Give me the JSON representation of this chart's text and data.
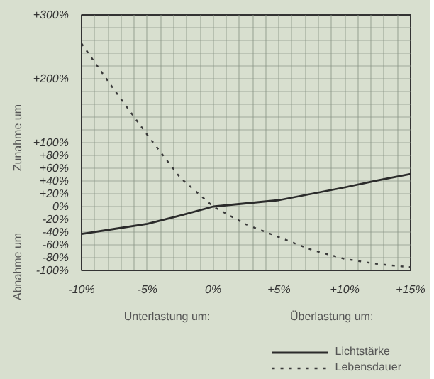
{
  "chart_data": {
    "type": "line",
    "x": [
      -10,
      -7.5,
      -5,
      -2.5,
      0,
      2.5,
      5,
      7.5,
      10,
      12.5,
      15
    ],
    "series": [
      {
        "name": "Lichtstärke",
        "color": "#2b2b2b",
        "line_style": "solid",
        "values": [
          -43,
          -35,
          -27,
          -14,
          0,
          5,
          10,
          20,
          30,
          41,
          51
        ]
      },
      {
        "name": "Lebensdauer",
        "color": "#3a3a3a",
        "line_style": "dotted",
        "values": [
          255,
          182,
          112,
          45,
          0,
          -28,
          -48,
          -68,
          -82,
          -90,
          -95
        ]
      }
    ],
    "xlim": [
      -10,
      15
    ],
    "ylim": [
      -100,
      300
    ],
    "xticks": [
      {
        "value": -10,
        "label": "-10%"
      },
      {
        "value": -9,
        "label": null
      },
      {
        "value": -8,
        "label": null
      },
      {
        "value": -7,
        "label": null
      },
      {
        "value": -6,
        "label": null
      },
      {
        "value": -5,
        "label": "-5%"
      },
      {
        "value": -4,
        "label": null
      },
      {
        "value": -3,
        "label": null
      },
      {
        "value": -2,
        "label": null
      },
      {
        "value": -1,
        "label": null
      },
      {
        "value": 0,
        "label": "0%"
      },
      {
        "value": 1,
        "label": null
      },
      {
        "value": 2,
        "label": null
      },
      {
        "value": 3,
        "label": null
      },
      {
        "value": 4,
        "label": null
      },
      {
        "value": 5,
        "label": "+5%"
      },
      {
        "value": 6,
        "label": null
      },
      {
        "value": 7,
        "label": null
      },
      {
        "value": 8,
        "label": null
      },
      {
        "value": 9,
        "label": null
      },
      {
        "value": 10,
        "label": "+10%"
      },
      {
        "value": 11,
        "label": null
      },
      {
        "value": 12,
        "label": null
      },
      {
        "value": 13,
        "label": null
      },
      {
        "value": 14,
        "label": null
      },
      {
        "value": 15,
        "label": "+15%"
      }
    ],
    "yticks": [
      {
        "value": -100,
        "label": "-100%"
      },
      {
        "value": -80,
        "label": "-80%"
      },
      {
        "value": -60,
        "label": "-60%"
      },
      {
        "value": -40,
        "label": "-40%"
      },
      {
        "value": -20,
        "label": "-20%"
      },
      {
        "value": 0,
        "label": "0%"
      },
      {
        "value": 20,
        "label": "+20%"
      },
      {
        "value": 40,
        "label": "+40%"
      },
      {
        "value": 60,
        "label": "+60%"
      },
      {
        "value": 80,
        "label": "+80%"
      },
      {
        "value": 100,
        "label": "+100%"
      },
      {
        "value": 120,
        "label": null
      },
      {
        "value": 140,
        "label": null
      },
      {
        "value": 160,
        "label": null
      },
      {
        "value": 180,
        "label": null
      },
      {
        "value": 200,
        "label": "+200%"
      },
      {
        "value": 220,
        "label": null
      },
      {
        "value": 240,
        "label": null
      },
      {
        "value": 260,
        "label": null
      },
      {
        "value": 280,
        "label": null
      },
      {
        "value": 300,
        "label": "+300%"
      }
    ],
    "annotations": [
      "Zunahme um",
      "Abnahme um",
      "Unterlastung um:",
      "Überlastung um:"
    ],
    "grid": true,
    "legend": "bottom right",
    "marker": "none"
  }
}
